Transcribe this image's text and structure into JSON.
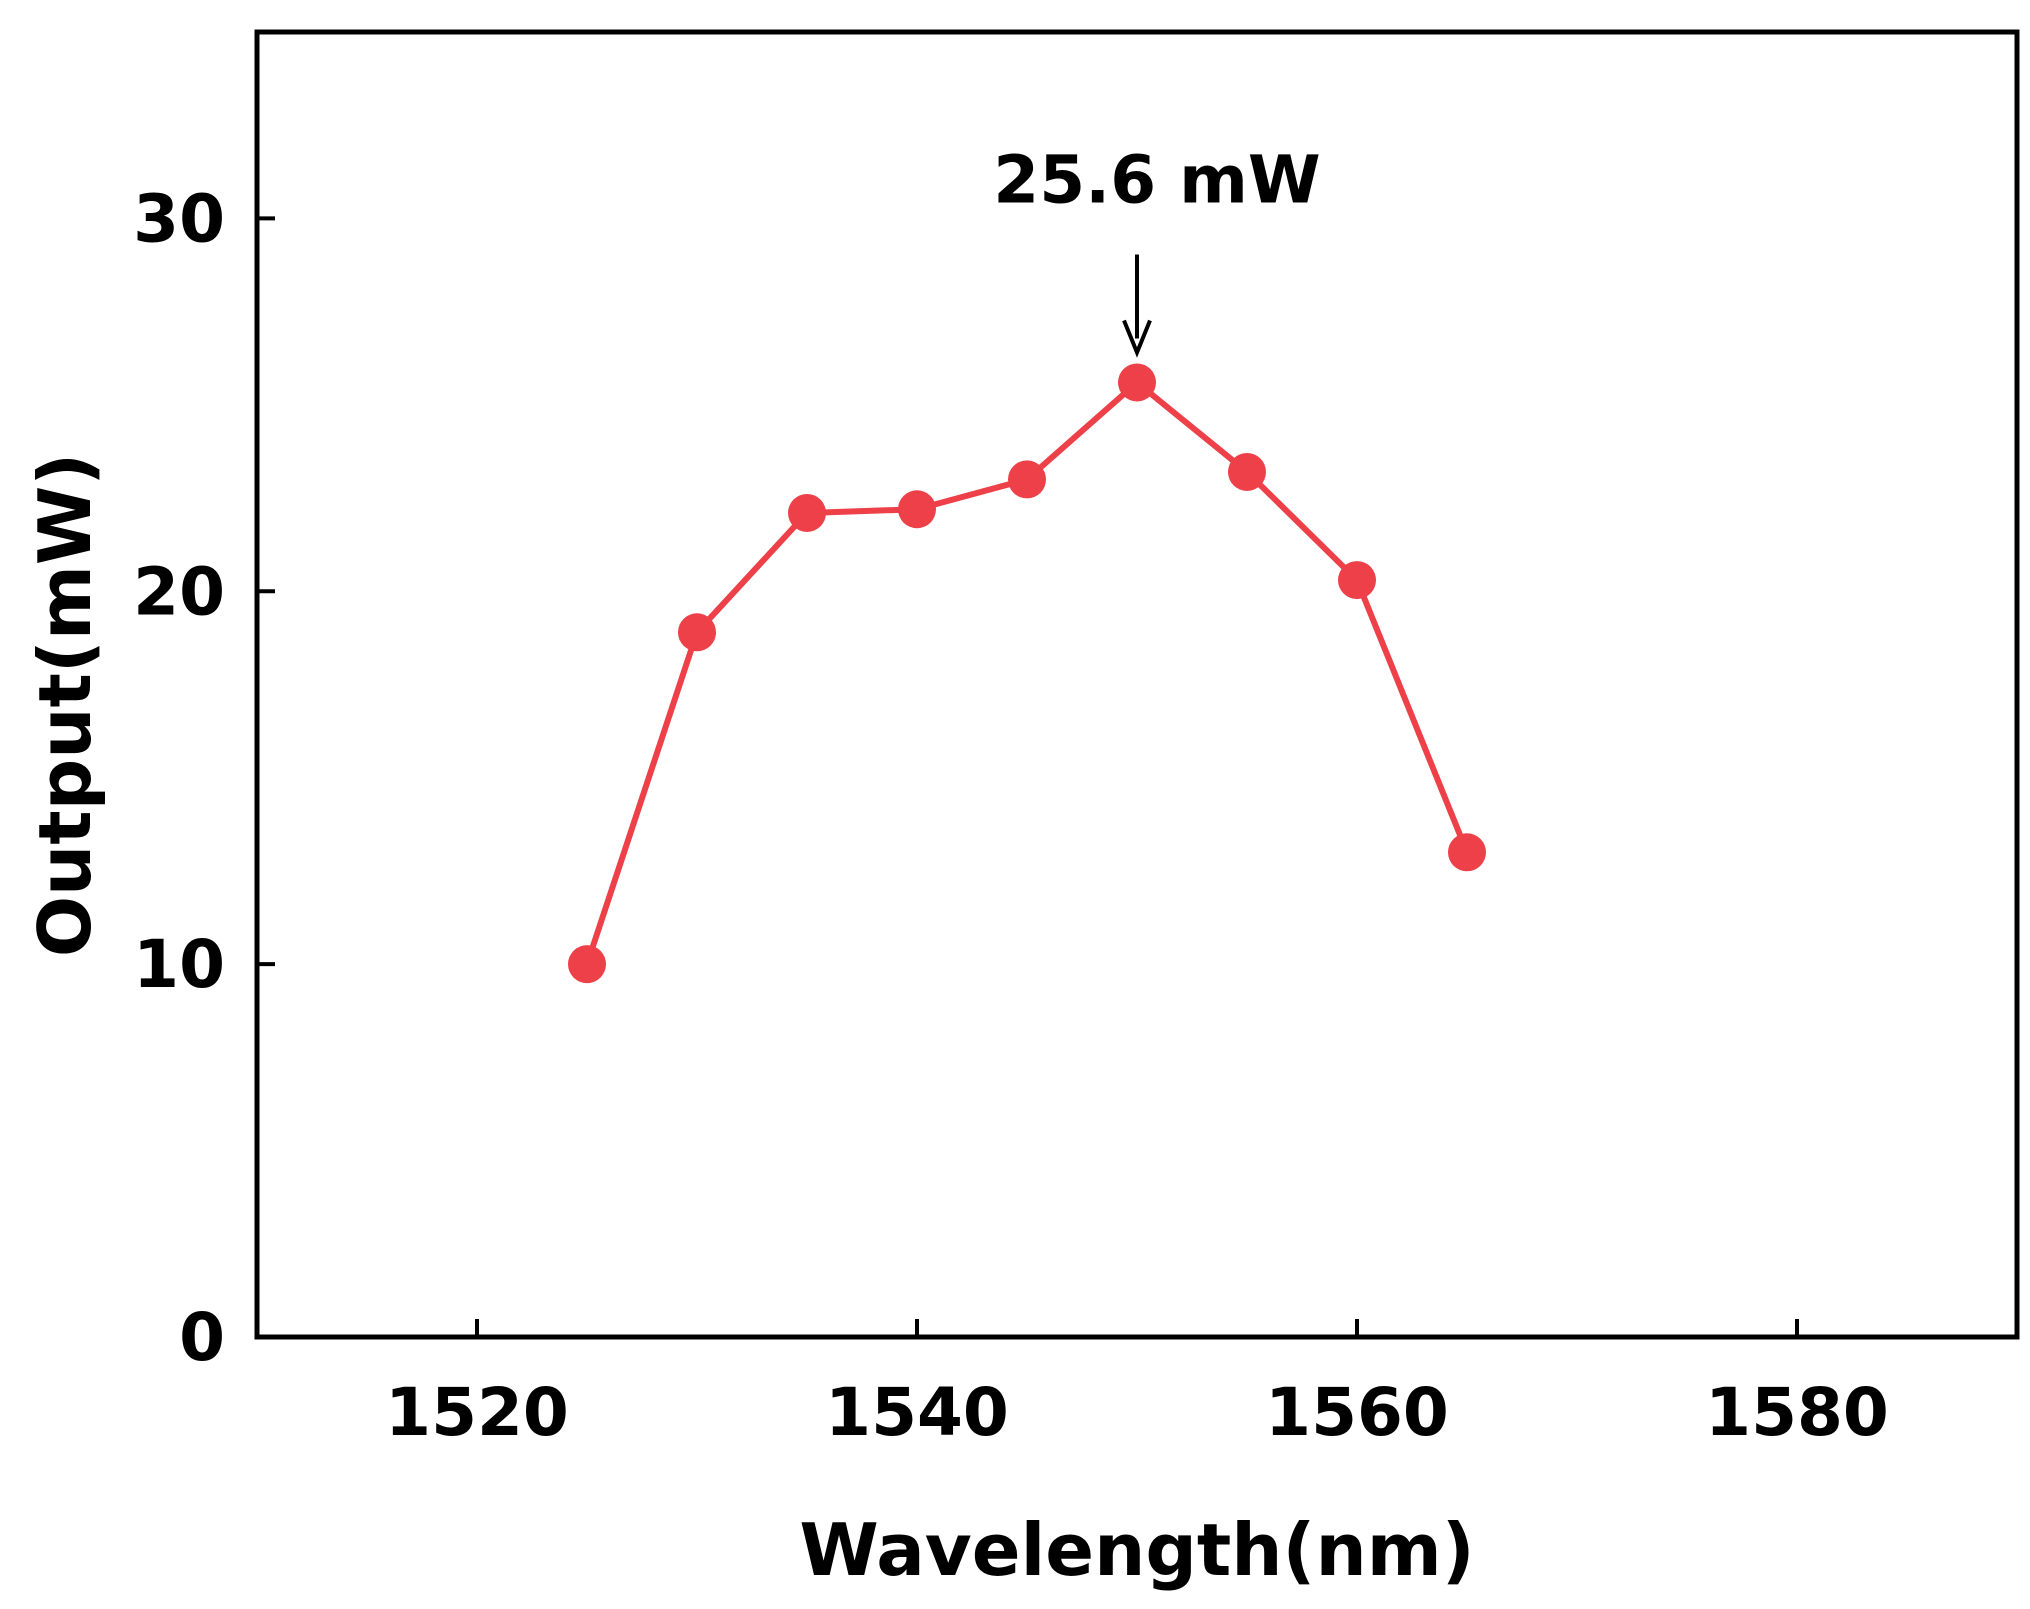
{
  "chart_data": {
    "type": "line",
    "title": "",
    "xlabel": "Wavelength(nm)",
    "ylabel": "Output(mW)",
    "xlim": [
      1510,
      1590
    ],
    "ylim": [
      0,
      35
    ],
    "xticks": [
      1520,
      1540,
      1560,
      1580
    ],
    "yticks": [
      0,
      10,
      20,
      30
    ],
    "grid": false,
    "series": [
      {
        "name": "Output",
        "color": "#ee4048",
        "marker": "circle",
        "x": [
          1525,
          1530,
          1535,
          1540,
          1545,
          1550,
          1555,
          1560,
          1565
        ],
        "y": [
          10.0,
          18.9,
          22.1,
          22.2,
          23.0,
          25.6,
          23.2,
          20.3,
          13.0
        ]
      }
    ],
    "annotations": [
      {
        "text": "25.6 mW",
        "x": 1550,
        "y": 25.6,
        "arrow": true
      }
    ]
  }
}
